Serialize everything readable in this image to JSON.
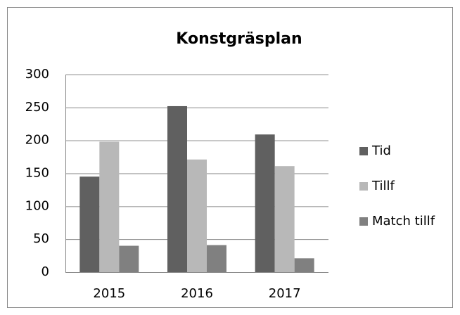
{
  "chart_data": {
    "type": "bar",
    "title": "Konstgräsplan",
    "categories": [
      "2015",
      "2016",
      "2017"
    ],
    "series": [
      {
        "name": "Tid",
        "color": "#606060",
        "values": [
          145,
          252,
          209
        ]
      },
      {
        "name": "Tillf",
        "color": "#b8b8b8",
        "values": [
          198,
          171,
          161
        ]
      },
      {
        "name": "Match tillf",
        "color": "#808080",
        "values": [
          40,
          41,
          21
        ]
      }
    ],
    "ylim": [
      0,
      300
    ],
    "yticks": [
      0,
      50,
      100,
      150,
      200,
      250,
      300
    ],
    "grid": true,
    "legend": "right"
  }
}
